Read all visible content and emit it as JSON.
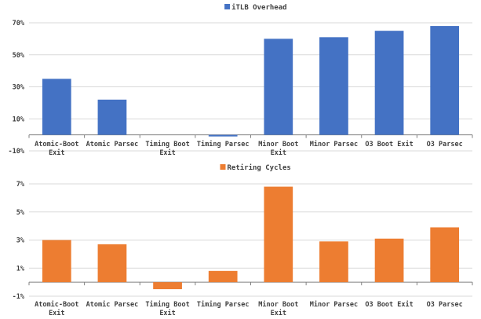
{
  "chart_data": [
    {
      "type": "bar",
      "legend": "iTLB Overhead",
      "legend_position": "top-center",
      "color": "#4472c4",
      "categories": [
        "Atomic-Boot Exit",
        "Atomic Parsec",
        "Timing Boot Exit",
        "Timing Parsec",
        "Minor Boot Exit",
        "Minor Parsec",
        "O3 Boot Exit",
        "O3 Parsec"
      ],
      "values": [
        35,
        22,
        0,
        -1,
        60,
        61,
        65,
        68
      ],
      "ylim": [
        -10,
        70
      ],
      "yticks": [
        -10,
        10,
        30,
        50,
        70
      ],
      "ytick_labels": [
        "-10%",
        "10%",
        "30%",
        "50%",
        "70%"
      ],
      "grid": true
    },
    {
      "type": "bar",
      "legend": "Retiring Cycles",
      "legend_position": "top-center",
      "color": "#ed7d31",
      "categories": [
        "Atomic-Boot Exit",
        "Atomic Parsec",
        "Timing Boot Exit",
        "Timing Parsec",
        "Minor Boot Exit",
        "Minor Parsec",
        "O3 Boot Exit",
        "O3 Parsec"
      ],
      "values": [
        3.0,
        2.7,
        -0.5,
        0.8,
        6.8,
        2.9,
        3.1,
        3.9
      ],
      "ylim": [
        -1,
        7
      ],
      "yticks": [
        -1,
        1,
        3,
        5,
        7
      ],
      "ytick_labels": [
        "-1%",
        "1%",
        "3%",
        "5%",
        "7%"
      ],
      "grid": true
    }
  ]
}
